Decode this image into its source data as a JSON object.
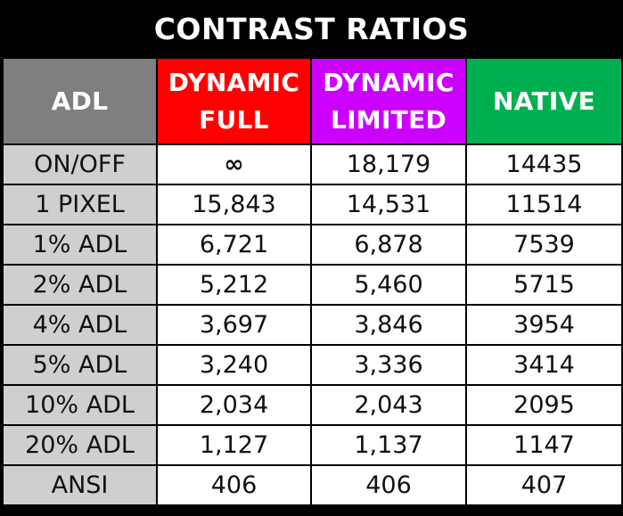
{
  "title": "CONTRAST RATIOS",
  "colors": {
    "background": "#000000",
    "adl_header": "#7f7f7f",
    "dynamic_full_header": "#ff0000",
    "dynamic_limited_header": "#cc00ff",
    "native_header": "#00b050",
    "row_label_bg": "#d0cece",
    "cell_bg": "#ffffff"
  },
  "headers": {
    "adl": "ADL",
    "dynamic_full_line1": "DYNAMIC",
    "dynamic_full_line2": "FULL",
    "dynamic_limited_line1": "DYNAMIC",
    "dynamic_limited_line2": "LIMITED",
    "native": "NATIVE"
  },
  "rows": [
    {
      "label": "ON/OFF",
      "dynamic_full": "∞",
      "dynamic_limited": "18,179",
      "native": "14435"
    },
    {
      "label": "1 PIXEL",
      "dynamic_full": "15,843",
      "dynamic_limited": "14,531",
      "native": "11514"
    },
    {
      "label": "1% ADL",
      "dynamic_full": "6,721",
      "dynamic_limited": "6,878",
      "native": "7539"
    },
    {
      "label": "2% ADL",
      "dynamic_full": "5,212",
      "dynamic_limited": "5,460",
      "native": "5715"
    },
    {
      "label": "4% ADL",
      "dynamic_full": "3,697",
      "dynamic_limited": "3,846",
      "native": "3954"
    },
    {
      "label": "5% ADL",
      "dynamic_full": "3,240",
      "dynamic_limited": "3,336",
      "native": "3414"
    },
    {
      "label": "10% ADL",
      "dynamic_full": "2,034",
      "dynamic_limited": "2,043",
      "native": "2095"
    },
    {
      "label": "20% ADL",
      "dynamic_full": "1,127",
      "dynamic_limited": "1,137",
      "native": "1147"
    },
    {
      "label": "ANSI",
      "dynamic_full": "406",
      "dynamic_limited": "406",
      "native": "407"
    }
  ],
  "chart_data": {
    "type": "table",
    "title": "CONTRAST RATIOS",
    "columns": [
      "ADL",
      "DYNAMIC FULL",
      "DYNAMIC LIMITED",
      "NATIVE"
    ],
    "categories": [
      "ON/OFF",
      "1 PIXEL",
      "1% ADL",
      "2% ADL",
      "4% ADL",
      "5% ADL",
      "10% ADL",
      "20% ADL",
      "ANSI"
    ],
    "series": [
      {
        "name": "DYNAMIC FULL",
        "color": "#ff0000",
        "values": [
          "∞",
          15843,
          6721,
          5212,
          3697,
          3240,
          2034,
          1127,
          406
        ]
      },
      {
        "name": "DYNAMIC LIMITED",
        "color": "#cc00ff",
        "values": [
          18179,
          14531,
          6878,
          5460,
          3846,
          3336,
          2043,
          1137,
          406
        ]
      },
      {
        "name": "NATIVE",
        "color": "#00b050",
        "values": [
          14435,
          11514,
          7539,
          5715,
          3954,
          3414,
          2095,
          1147,
          407
        ]
      }
    ]
  }
}
